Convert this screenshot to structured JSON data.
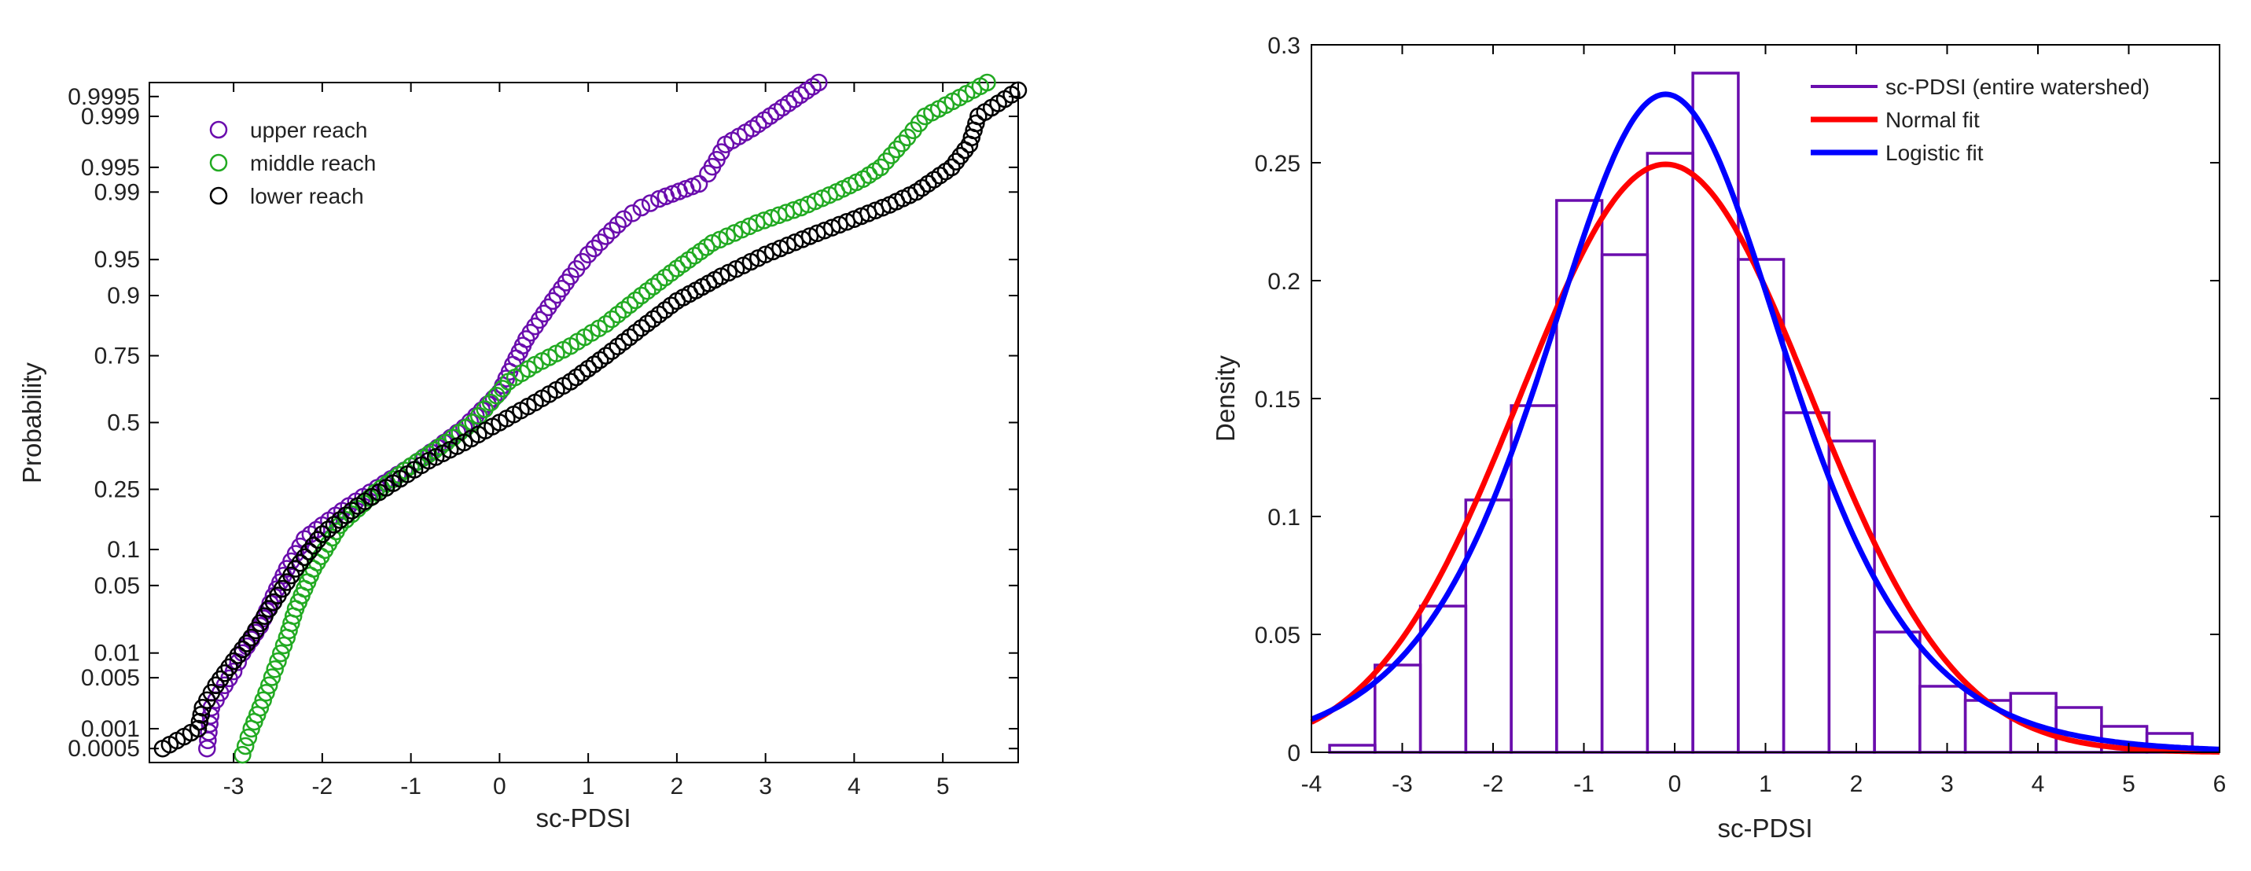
{
  "chart_data": [
    {
      "type": "scatter",
      "xlabel": "sc-PDSI",
      "ylabel": "Probability",
      "xlim": [
        -3.95,
        5.85
      ],
      "x_ticks": [
        "-3",
        "-2",
        "-1",
        "0",
        "1",
        "2",
        "3",
        "4",
        "5"
      ],
      "x_tick_values": [
        -3,
        -2,
        -1,
        0,
        1,
        2,
        3,
        4,
        5
      ],
      "y_scale": "normal-probability",
      "y_ticks": [
        "0.0005",
        "0.001",
        "0.005",
        "0.01",
        "0.05",
        "0.1",
        "0.25",
        "0.5",
        "0.75",
        "0.9",
        "0.95",
        "0.99",
        "0.995",
        "0.999",
        "0.9995"
      ],
      "y_tick_values": [
        0.0005,
        0.001,
        0.005,
        0.01,
        0.05,
        0.1,
        0.25,
        0.5,
        0.75,
        0.9,
        0.95,
        0.99,
        0.995,
        0.999,
        0.9995
      ],
      "legend_position": "top-left",
      "series": [
        {
          "name": "upper reach",
          "color": "#6a0dad",
          "points": [
            [
              -3.3,
              0.0005
            ],
            [
              -3.25,
              0.002
            ],
            [
              -3.1,
              0.004
            ],
            [
              -3.0,
              0.006
            ],
            [
              -2.9,
              0.01
            ],
            [
              -2.7,
              0.02
            ],
            [
              -2.55,
              0.04
            ],
            [
              -2.4,
              0.07
            ],
            [
              -2.2,
              0.12
            ],
            [
              -2.0,
              0.15
            ],
            [
              -1.7,
              0.2
            ],
            [
              -1.3,
              0.27
            ],
            [
              -1.0,
              0.33
            ],
            [
              -0.7,
              0.4
            ],
            [
              -0.4,
              0.48
            ],
            [
              -0.2,
              0.55
            ],
            [
              0.0,
              0.62
            ],
            [
              0.15,
              0.72
            ],
            [
              0.3,
              0.8
            ],
            [
              0.45,
              0.85
            ],
            [
              0.6,
              0.89
            ],
            [
              0.8,
              0.93
            ],
            [
              1.0,
              0.955
            ],
            [
              1.2,
              0.97
            ],
            [
              1.4,
              0.98
            ],
            [
              1.6,
              0.985
            ],
            [
              1.8,
              0.988
            ],
            [
              2.25,
              0.992
            ],
            [
              2.35,
              0.994
            ],
            [
              2.45,
              0.996
            ],
            [
              2.55,
              0.9975
            ],
            [
              2.85,
              0.9985
            ],
            [
              3.6,
              0.9997
            ]
          ]
        },
        {
          "name": "middle reach",
          "color": "#22aa22",
          "points": [
            [
              -2.9,
              0.0004
            ],
            [
              -2.8,
              0.001
            ],
            [
              -2.7,
              0.002
            ],
            [
              -2.6,
              0.004
            ],
            [
              -2.5,
              0.008
            ],
            [
              -2.4,
              0.015
            ],
            [
              -2.3,
              0.03
            ],
            [
              -2.1,
              0.07
            ],
            [
              -1.8,
              0.15
            ],
            [
              -1.4,
              0.24
            ],
            [
              -1.0,
              0.33
            ],
            [
              -0.6,
              0.42
            ],
            [
              -0.3,
              0.5
            ],
            [
              -0.1,
              0.58
            ],
            [
              0.1,
              0.66
            ],
            [
              0.4,
              0.72
            ],
            [
              0.8,
              0.78
            ],
            [
              1.2,
              0.84
            ],
            [
              1.6,
              0.9
            ],
            [
              2.0,
              0.94
            ],
            [
              2.4,
              0.965
            ],
            [
              2.9,
              0.978
            ],
            [
              3.4,
              0.985
            ],
            [
              3.8,
              0.99
            ],
            [
              4.1,
              0.993
            ],
            [
              4.3,
              0.995
            ],
            [
              4.6,
              0.998
            ],
            [
              4.8,
              0.999
            ],
            [
              5.5,
              0.9997
            ]
          ]
        },
        {
          "name": "lower reach",
          "color": "#000000",
          "points": [
            [
              -3.8,
              0.0005
            ],
            [
              -3.4,
              0.001
            ],
            [
              -3.35,
              0.002
            ],
            [
              -3.2,
              0.004
            ],
            [
              -3.0,
              0.008
            ],
            [
              -2.8,
              0.015
            ],
            [
              -2.6,
              0.03
            ],
            [
              -2.3,
              0.07
            ],
            [
              -2.0,
              0.13
            ],
            [
              -1.6,
              0.2
            ],
            [
              -1.2,
              0.27
            ],
            [
              -0.8,
              0.35
            ],
            [
              -0.4,
              0.42
            ],
            [
              0.0,
              0.5
            ],
            [
              0.4,
              0.58
            ],
            [
              0.8,
              0.66
            ],
            [
              1.2,
              0.75
            ],
            [
              1.6,
              0.83
            ],
            [
              2.0,
              0.89
            ],
            [
              2.5,
              0.93
            ],
            [
              3.0,
              0.955
            ],
            [
              3.5,
              0.97
            ],
            [
              4.0,
              0.98
            ],
            [
              4.4,
              0.986
            ],
            [
              4.7,
              0.99
            ],
            [
              5.1,
              0.995
            ],
            [
              5.3,
              0.9975
            ],
            [
              5.4,
              0.999
            ],
            [
              5.85,
              0.9996
            ]
          ]
        }
      ]
    },
    {
      "type": "bar",
      "subtype": "histogram-with-fits",
      "xlabel": "sc-PDSI",
      "ylabel": "Density",
      "xlim": [
        -4,
        6
      ],
      "ylim": [
        0,
        0.3
      ],
      "x_ticks": [
        "-4",
        "-3",
        "-2",
        "-1",
        "0",
        "1",
        "2",
        "3",
        "4",
        "5",
        "6"
      ],
      "x_tick_values": [
        -4,
        -3,
        -2,
        -1,
        0,
        1,
        2,
        3,
        4,
        5,
        6
      ],
      "y_ticks": [
        "0",
        "0.05",
        "0.1",
        "0.15",
        "0.2",
        "0.25",
        "0.3"
      ],
      "y_tick_values": [
        0,
        0.05,
        0.1,
        0.15,
        0.2,
        0.25,
        0.3
      ],
      "legend_position": "top-right",
      "bin_edges": [
        -3.8,
        -3.3,
        -2.8,
        -2.3,
        -1.8,
        -1.3,
        -0.8,
        -0.3,
        0.2,
        0.7,
        1.2,
        1.7,
        2.2,
        2.7,
        3.2,
        3.7,
        4.2,
        4.7,
        5.2,
        5.7
      ],
      "bin_values": [
        0.003,
        0.037,
        0.062,
        0.107,
        0.147,
        0.234,
        0.211,
        0.254,
        0.288,
        0.209,
        0.144,
        0.132,
        0.051,
        0.028,
        0.022,
        0.025,
        0.019,
        0.011,
        0.008
      ],
      "series": [
        {
          "name": "sc-PDSI (entire watershed)",
          "color": "#6a0dad"
        },
        {
          "name": "Normal fit",
          "color": "#ff0000",
          "mu": -0.1,
          "sigma": 1.6
        },
        {
          "name": "Logistic fit",
          "color": "#0000ff",
          "mu": -0.1,
          "s": 0.896
        }
      ]
    }
  ]
}
